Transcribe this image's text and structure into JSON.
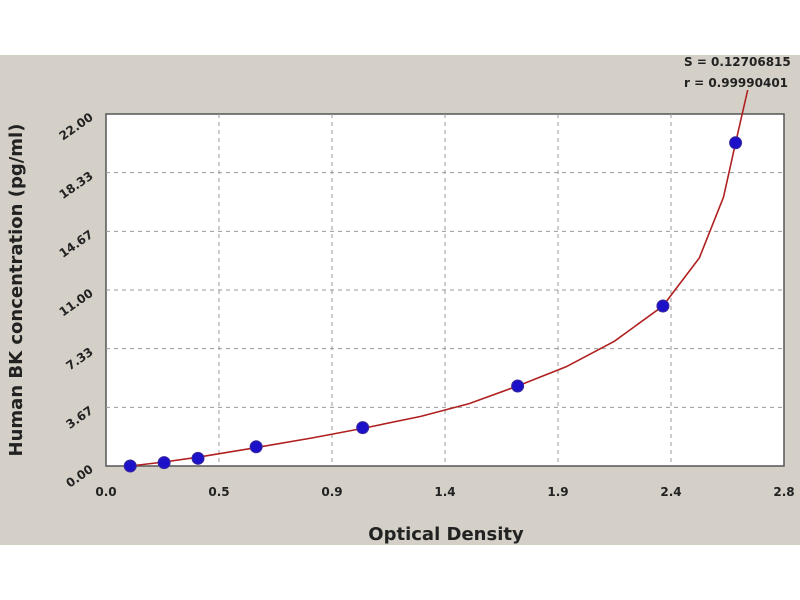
{
  "chart_data": {
    "type": "scatter",
    "xlabel": "Optical Density",
    "ylabel": "Human BK concentration (pg/ml)",
    "xlim": [
      0,
      2.8
    ],
    "ylim": [
      0,
      22
    ],
    "x_ticks": [
      "0.0",
      "0.5",
      "0.9",
      "1.4",
      "1.9",
      "2.4",
      "2.8"
    ],
    "y_ticks": [
      "0.00",
      "3.67",
      "7.33",
      "11.00",
      "14.67",
      "18.33",
      "22.00"
    ],
    "grid": true,
    "stats": {
      "s": "S = 0.12706815",
      "r": "r = 0.99990401"
    },
    "points": [
      {
        "x": 0.1,
        "y": 0.0
      },
      {
        "x": 0.24,
        "y": 0.21
      },
      {
        "x": 0.38,
        "y": 0.48
      },
      {
        "x": 0.62,
        "y": 1.2
      },
      {
        "x": 1.06,
        "y": 2.4
      },
      {
        "x": 1.7,
        "y": 5.0
      },
      {
        "x": 2.3,
        "y": 10.0
      },
      {
        "x": 2.6,
        "y": 20.2
      }
    ],
    "fit_curve": [
      {
        "x": 0.1,
        "y": 0.0
      },
      {
        "x": 0.24,
        "y": 0.25
      },
      {
        "x": 0.38,
        "y": 0.55
      },
      {
        "x": 0.62,
        "y": 1.15
      },
      {
        "x": 0.85,
        "y": 1.75
      },
      {
        "x": 1.06,
        "y": 2.35
      },
      {
        "x": 1.3,
        "y": 3.1
      },
      {
        "x": 1.5,
        "y": 3.9
      },
      {
        "x": 1.7,
        "y": 5.0
      },
      {
        "x": 1.9,
        "y": 6.2
      },
      {
        "x": 2.1,
        "y": 7.8
      },
      {
        "x": 2.3,
        "y": 10.0
      },
      {
        "x": 2.45,
        "y": 13.0
      },
      {
        "x": 2.55,
        "y": 16.8
      },
      {
        "x": 2.6,
        "y": 20.2
      },
      {
        "x": 2.65,
        "y": 23.5
      }
    ],
    "colors": {
      "point": "#1c10c8",
      "curve": "#b02020",
      "grid": "#999999",
      "background": "#d4d0c8"
    }
  }
}
